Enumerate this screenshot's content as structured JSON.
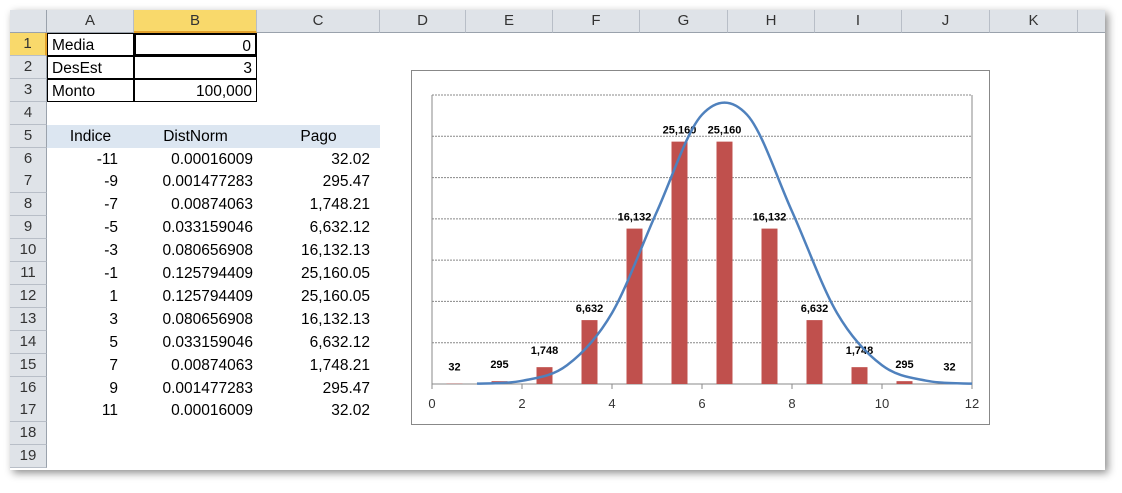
{
  "columns": [
    "A",
    "B",
    "C",
    "D",
    "E",
    "F",
    "G",
    "H",
    "I",
    "J",
    "K"
  ],
  "rows": [
    "1",
    "2",
    "3",
    "4",
    "5",
    "6",
    "7",
    "8",
    "9",
    "10",
    "11",
    "12",
    "13",
    "14",
    "15",
    "16",
    "17",
    "18",
    "19"
  ],
  "selected_cell": "B1",
  "params": [
    {
      "label": "Media",
      "value": "0"
    },
    {
      "label": "DesEst",
      "value": "3"
    },
    {
      "label": "Monto",
      "value": "100,000"
    }
  ],
  "table": {
    "headers": [
      "Indice",
      "DistNorm",
      "Pago"
    ],
    "rows": [
      [
        "-11",
        "0.00016009",
        "32.02"
      ],
      [
        "-9",
        "0.001477283",
        "295.47"
      ],
      [
        "-7",
        "0.00874063",
        "1,748.21"
      ],
      [
        "-5",
        "0.033159046",
        "6,632.12"
      ],
      [
        "-3",
        "0.080656908",
        "16,132.13"
      ],
      [
        "-1",
        "0.125794409",
        "25,160.05"
      ],
      [
        "1",
        "0.125794409",
        "25,160.05"
      ],
      [
        "3",
        "0.080656908",
        "16,132.13"
      ],
      [
        "5",
        "0.033159046",
        "6,632.12"
      ],
      [
        "7",
        "0.00874063",
        "1,748.21"
      ],
      [
        "9",
        "0.001477283",
        "295.47"
      ],
      [
        "11",
        "0.00016009",
        "32.02"
      ]
    ],
    "header_fill": "#dce6f1"
  },
  "chart_data": {
    "type": "bar",
    "xlim": [
      0,
      12
    ],
    "xticks": [
      "0",
      "2",
      "4",
      "6",
      "8",
      "10",
      "12"
    ],
    "ylim": [
      0,
      30000
    ],
    "grid": true,
    "bar_color": "#c0504d",
    "line_color": "#4f81bd",
    "bars": {
      "x": [
        0.5,
        1.5,
        2.5,
        3.5,
        4.5,
        5.5,
        6.5,
        7.5,
        8.5,
        9.5,
        10.5,
        11.5
      ],
      "values": [
        32.02,
        295.47,
        1748.21,
        6632.12,
        16132.13,
        25160.05,
        25160.05,
        16132.13,
        6632.12,
        1748.21,
        295.47,
        32.02
      ],
      "labels": [
        "32",
        "295",
        "1,748",
        "6,632",
        "16,132",
        "25,160",
        "25,160",
        "16,132",
        "6,632",
        "1,748",
        "295",
        "32"
      ]
    },
    "line": {
      "x": [
        1,
        2,
        3,
        4,
        5,
        6,
        7,
        8,
        9,
        10,
        11,
        12
      ],
      "values": [
        0.00016009,
        0.001477283,
        0.00874063,
        0.033159046,
        0.080656908,
        0.125794409,
        0.125794409,
        0.080656908,
        0.033159046,
        0.00874063,
        0.001477283,
        0.00016009
      ],
      "secondary_ylim": [
        0,
        0.135
      ],
      "smooth": true
    }
  }
}
